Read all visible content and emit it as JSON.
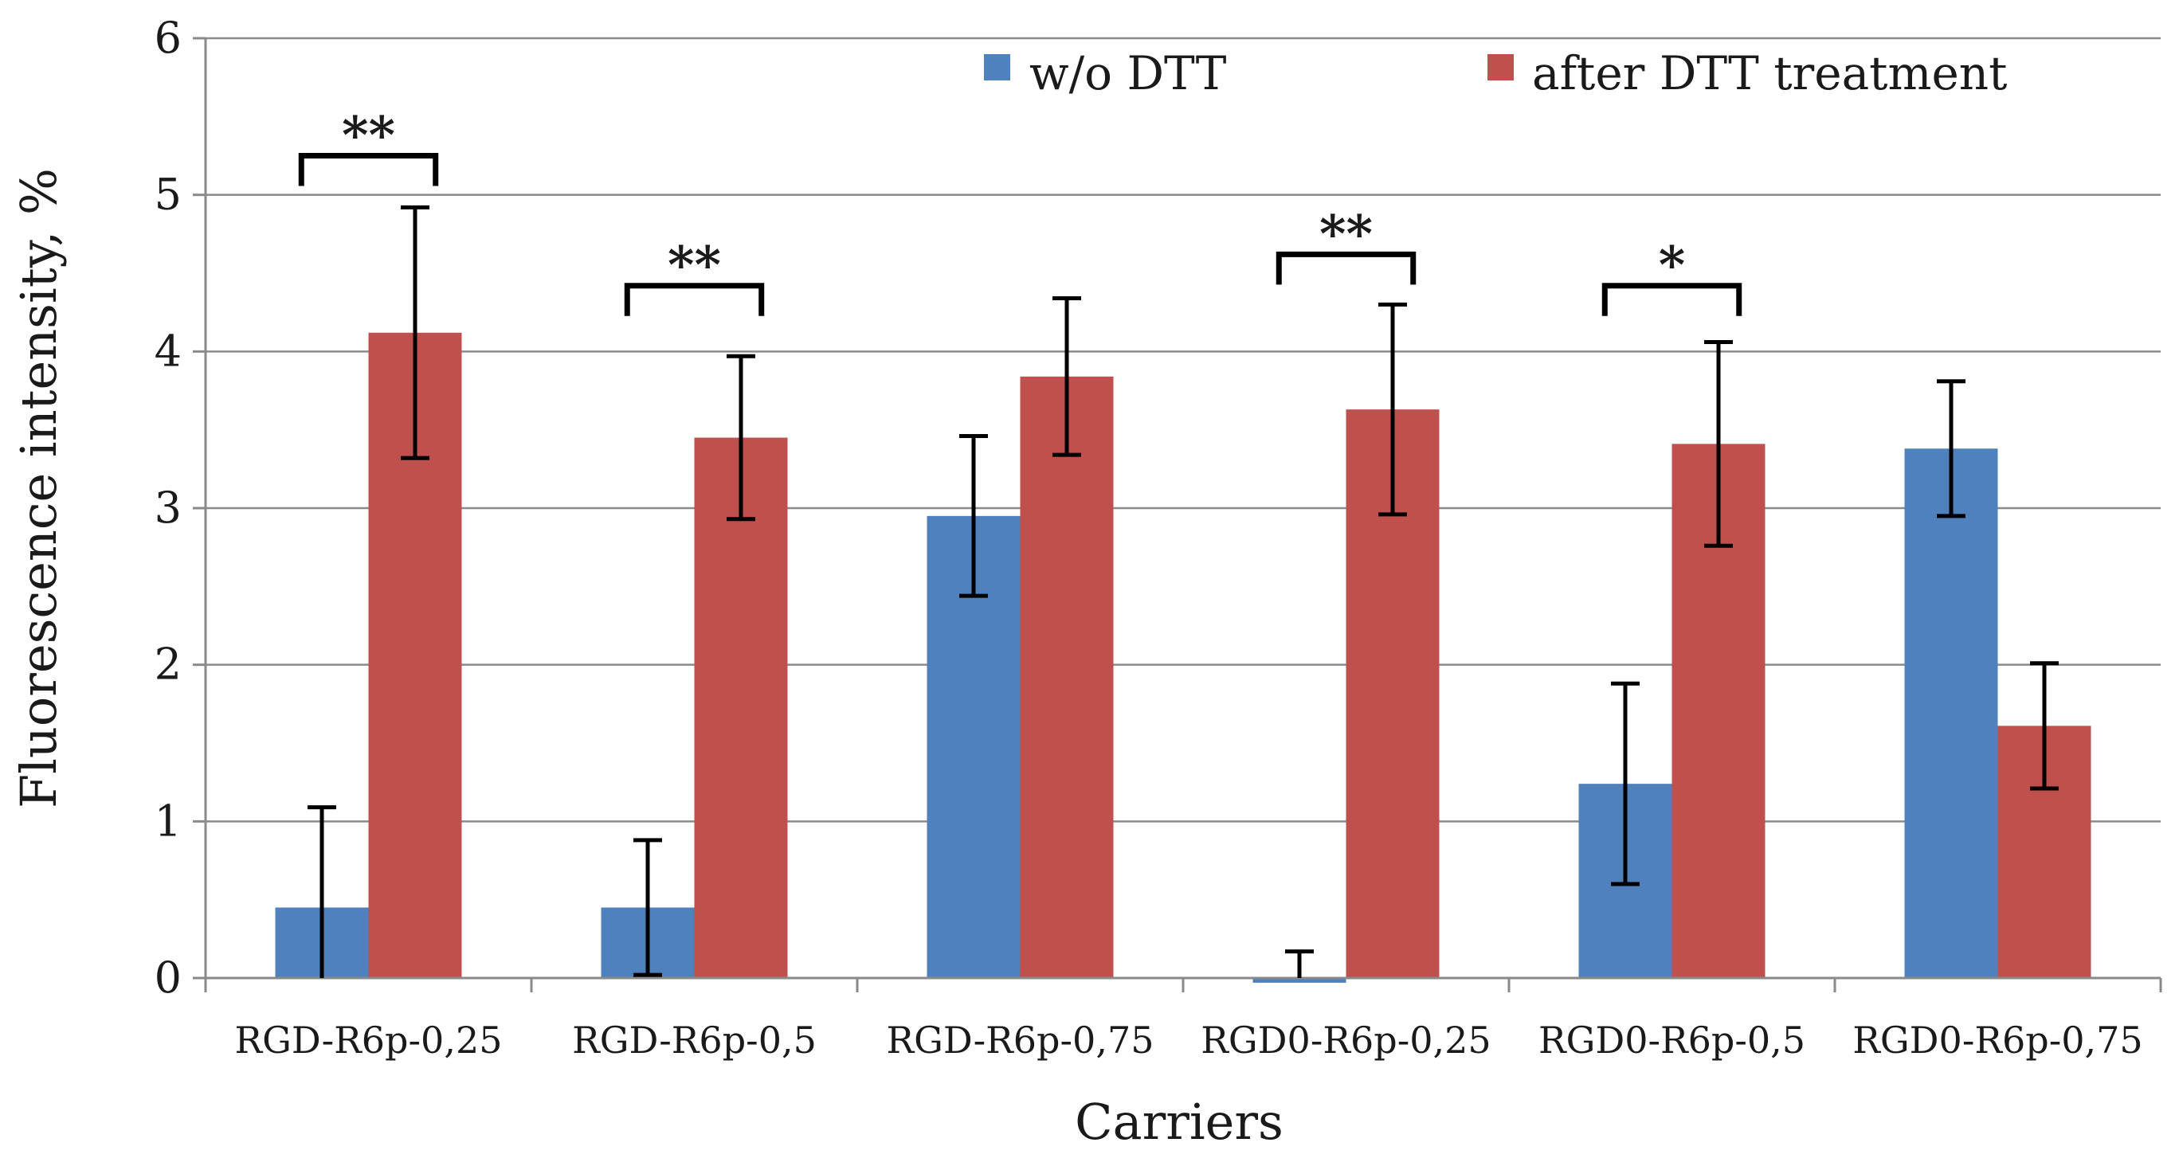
{
  "chart_data": {
    "type": "bar",
    "title": "",
    "xlabel": "Carriers",
    "ylabel": "Fluorescence intensity, %",
    "ylim": [
      0,
      6
    ],
    "yticks": [
      "0",
      "1",
      "2",
      "3",
      "4",
      "5",
      "6"
    ],
    "grid": true,
    "legend_position": "top-right",
    "categories": [
      "RGD-R6p-0,25",
      "RGD-R6p-0,5",
      "RGD-R6p-0,75",
      "RGD0-R6p-0,25",
      "RGD0-R6p-0,5",
      "RGD0-R6p-0,75"
    ],
    "series": [
      {
        "name": "w/o DTT",
        "color": "#4f81bd",
        "values": [
          0.45,
          0.45,
          2.95,
          -0.03,
          1.24,
          3.38
        ],
        "errors": [
          0.64,
          0.43,
          0.51,
          0.2,
          0.64,
          0.43
        ]
      },
      {
        "name": "after DTT treatment",
        "color": "#c0504d",
        "values": [
          4.12,
          3.45,
          3.84,
          3.63,
          3.41,
          1.61
        ],
        "errors": [
          0.8,
          0.52,
          0.5,
          0.67,
          0.65,
          0.4
        ]
      }
    ],
    "annotations": [
      {
        "category_index": 0,
        "label": "**",
        "bracket_top": 5.25
      },
      {
        "category_index": 1,
        "label": "**",
        "bracket_top": 4.42
      },
      {
        "category_index": 3,
        "label": "**",
        "bracket_top": 4.62
      },
      {
        "category_index": 4,
        "label": "*",
        "bracket_top": 4.42
      }
    ]
  }
}
